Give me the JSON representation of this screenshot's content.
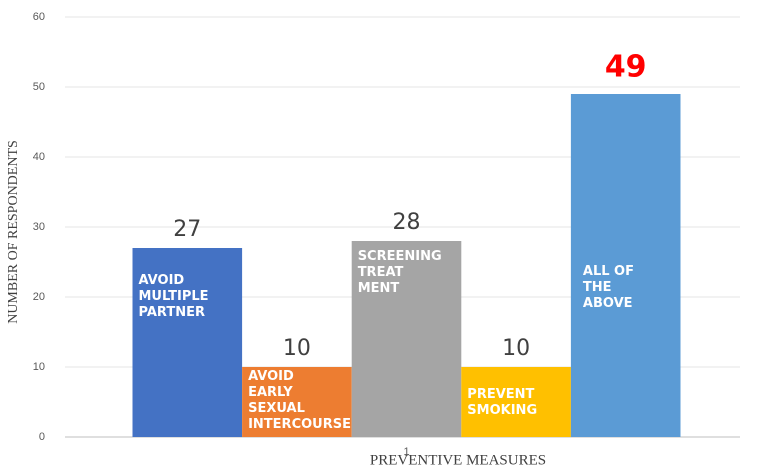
{
  "chart_data": {
    "type": "bar",
    "x_label": "PREVENTIVE MEASURES",
    "y_label": "NUMBER OF RESPONDENTS",
    "categories": [
      "1"
    ],
    "series": [
      {
        "name": "AVOID\nMULTIPLE\nPARTNER",
        "color": "#4472c4",
        "label_color": "#404040",
        "values": [
          27
        ]
      },
      {
        "name": "AVOID\n EARLY\n SEXUAL\nINTERCOURSE",
        "color": "#ed7d31",
        "label_color": "#404040",
        "values": [
          10
        ]
      },
      {
        "name": "SCREENING\nTREAT\nMENT",
        "color": "#a5a5a5",
        "label_color": "#404040",
        "values": [
          28
        ]
      },
      {
        "name": "PREVENT\nSMOKING",
        "color": "#ffc000",
        "label_color": "#404040",
        "values": [
          10
        ]
      },
      {
        "name": "ALL OF\nTHE\nABOVE",
        "color": "#5b9bd5",
        "label_color": "#ff0000",
        "values": [
          49
        ]
      }
    ],
    "ylim": [
      0,
      60
    ],
    "yticks": [
      0,
      10,
      20,
      30,
      40,
      50,
      60
    ],
    "grid": true
  }
}
